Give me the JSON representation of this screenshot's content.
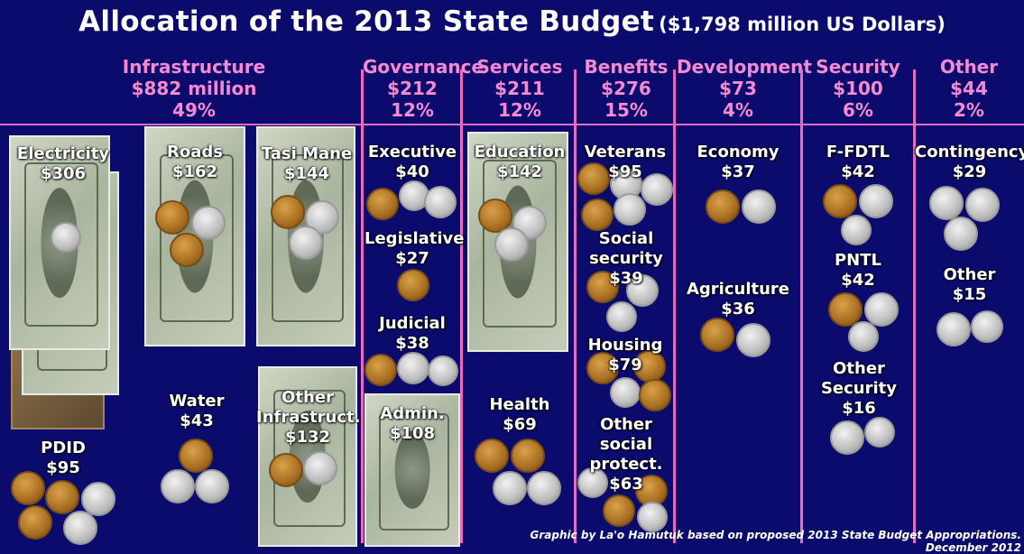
{
  "title": "Allocation of the 2013 State Budget",
  "subtitle": "($1,798 million US Dollars)",
  "credit": "Graphic by La'o Hamutuk based on proposed 2013 State Budget Appropriations.  December 2012",
  "categories": [
    {
      "name": "Infrastructure",
      "amount": "$882 million",
      "percent": "49%"
    },
    {
      "name": "Governance",
      "amount": "$212",
      "percent": "12%"
    },
    {
      "name": "Services",
      "amount": "$211",
      "percent": "12%"
    },
    {
      "name": "Benefits",
      "amount": "$276",
      "percent": "15%"
    },
    {
      "name": "Development",
      "amount": "$73",
      "percent": "4%"
    },
    {
      "name": "Security",
      "amount": "$100",
      "percent": "6%"
    },
    {
      "name": "Other",
      "amount": "$44",
      "percent": "2%"
    }
  ],
  "items": {
    "electricity": {
      "label": "Electricity",
      "amount": "$306"
    },
    "roads": {
      "label": "Roads",
      "amount": "$162"
    },
    "tasi_mane": {
      "label": "Tasi Mane",
      "amount": "$144"
    },
    "pdid": {
      "label": "PDID",
      "amount": "$95"
    },
    "water": {
      "label": "Water",
      "amount": "$43"
    },
    "other_infra": {
      "label": "Other Infrastruct.",
      "amount": "$132"
    },
    "executive": {
      "label": "Executive",
      "amount": "$40"
    },
    "legislative": {
      "label": "Legislative",
      "amount": "$27"
    },
    "judicial": {
      "label": "Judicial",
      "amount": "$38"
    },
    "admin": {
      "label": "Admin.",
      "amount": "$108"
    },
    "education": {
      "label": "Education",
      "amount": "$142"
    },
    "health": {
      "label": "Health",
      "amount": "$69"
    },
    "veterans": {
      "label": "Veterans",
      "amount": "$95"
    },
    "social_security": {
      "label": "Social security",
      "amount": "$39"
    },
    "housing": {
      "label": "Housing",
      "amount": "$79"
    },
    "other_social": {
      "label": "Other social protect.",
      "amount": "$63"
    },
    "economy": {
      "label": "Economy",
      "amount": "$37"
    },
    "agriculture": {
      "label": "Agriculture",
      "amount": "$36"
    },
    "ffdtl": {
      "label": "F-FDTL",
      "amount": "$42"
    },
    "pntl": {
      "label": "PNTL",
      "amount": "$42"
    },
    "other_security": {
      "label": "Other Security",
      "amount": "$16"
    },
    "contingency": {
      "label": "Contingency",
      "amount": "$29"
    },
    "other": {
      "label": "Other",
      "amount": "$15"
    }
  }
}
